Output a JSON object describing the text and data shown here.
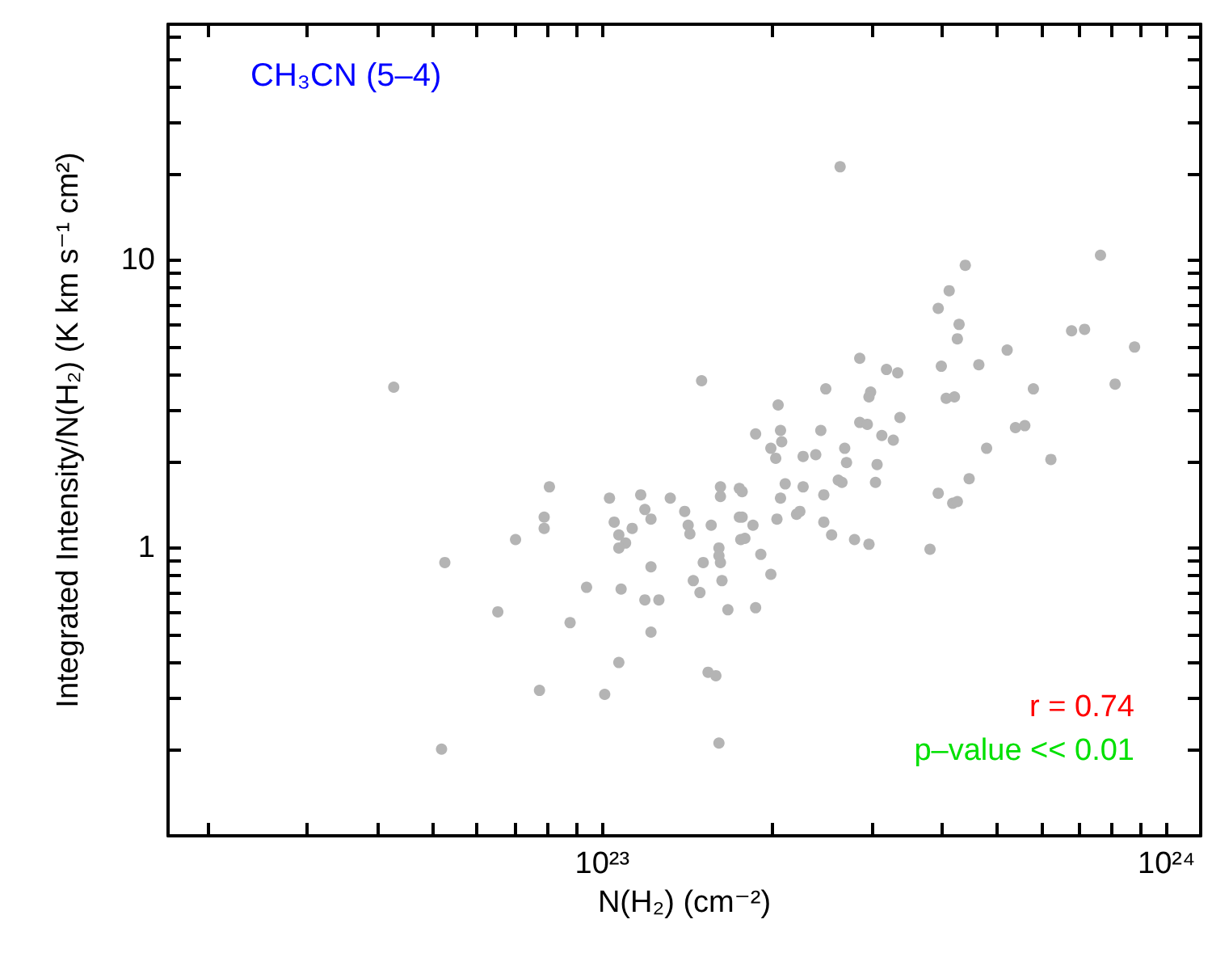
{
  "chart_data": {
    "type": "scatter",
    "title": "CH₃CN (5–4)",
    "xlabel": "N(H₂) (cm⁻²)",
    "ylabel": "Integrated Intensity/N(H₂) (K km s⁻¹ cm²)",
    "annotations": [
      "r = 0.74",
      "p–value << 0.01"
    ],
    "log": "xy",
    "marker": "circle",
    "grid": false,
    "xlim": [
      1.7e+22,
      1.15e+24
    ],
    "ylim": [
      0.1,
      66
    ],
    "xticks": [
      {
        "value": 2e+22,
        "label": null
      },
      {
        "value": 3e+22,
        "label": null
      },
      {
        "value": 4e+22,
        "label": null
      },
      {
        "value": 5e+22,
        "label": null
      },
      {
        "value": 6e+22,
        "label": null
      },
      {
        "value": 7e+22,
        "label": null
      },
      {
        "value": 8e+22,
        "label": null
      },
      {
        "value": 9e+22,
        "label": null
      },
      {
        "value": 1e+23,
        "label": "10²³"
      },
      {
        "value": 2e+23,
        "label": null
      },
      {
        "value": 3e+23,
        "label": null
      },
      {
        "value": 4e+23,
        "label": null
      },
      {
        "value": 5e+23,
        "label": null
      },
      {
        "value": 6e+23,
        "label": null
      },
      {
        "value": 7e+23,
        "label": null
      },
      {
        "value": 8e+23,
        "label": null
      },
      {
        "value": 9e+23,
        "label": null
      },
      {
        "value": 1e+24,
        "label": "10²⁴"
      }
    ],
    "yticks": [
      {
        "value": 0.2,
        "label": null
      },
      {
        "value": 0.3,
        "label": null
      },
      {
        "value": 0.4,
        "label": null
      },
      {
        "value": 0.5,
        "label": null
      },
      {
        "value": 0.6,
        "label": null
      },
      {
        "value": 0.7,
        "label": null
      },
      {
        "value": 0.8,
        "label": null
      },
      {
        "value": 0.9,
        "label": null
      },
      1,
      {
        "value": 2,
        "label": null
      },
      {
        "value": 3,
        "label": null
      },
      {
        "value": 4,
        "label": null
      },
      {
        "value": 5,
        "label": null
      },
      {
        "value": 6,
        "label": null
      },
      {
        "value": 7,
        "label": null
      },
      {
        "value": 8,
        "label": null
      },
      {
        "value": 9,
        "label": null
      },
      10,
      {
        "value": 20,
        "label": null
      },
      {
        "value": 30,
        "label": null
      },
      {
        "value": 40,
        "label": null
      },
      {
        "value": 50,
        "label": null
      },
      {
        "value": 60,
        "label": null
      }
    ],
    "series": [
      {
        "color": "#b4b4b4",
        "x": [
          4.27e+22,
          2.64e+23,
          7.64e+23,
          4.4e+23,
          4.12e+23,
          3.94e+23,
          4.29e+23,
          4.26e+23,
          6.79e+23,
          7.16e+23,
          8.78e+23,
          5.22e+23,
          4.65e+23,
          3.99e+23,
          2.86e+23,
          3.19e+23,
          3.34e+23,
          1.5e+23,
          2.49e+23,
          2.99e+23,
          2.97e+23,
          4.07e+23,
          4.21e+23,
          5.81e+23,
          8.11e+23,
          2.05e+23,
          2.86e+23,
          2.95e+23,
          3.37e+23,
          5.4e+23,
          5.61e+23,
          1.87e+23,
          2.07e+23,
          2.08e+23,
          2.44e+23,
          3.13e+23,
          3.28e+23,
          1.99e+23,
          2.03e+23,
          2.27e+23,
          2.39e+23,
          2.69e+23,
          2.71e+23,
          3.07e+23,
          4.8e+23,
          6.24e+23,
          4.47e+23,
          3.94e+23,
          4.18e+23,
          4.26e+23,
          3.81e+23,
          3.05e+23,
          2.62e+23,
          2.66e+23,
          2.47e+23,
          2.27e+23,
          2.11e+23,
          2.07e+23,
          1.62e+23,
          1.62e+23,
          1.75e+23,
          1.77e+23,
          1.4e+23,
          1.42e+23,
          1.43e+23,
          1.56e+23,
          1.75e+23,
          1.77e+23,
          1.85e+23,
          1.76e+23,
          1.79e+23,
          2.04e+23,
          2.21e+23,
          2.24e+23,
          2.47e+23,
          2.55e+23,
          2.8e+23,
          2.97e+23,
          1.61e+23,
          1.61e+23,
          1.62e+23,
          1.51e+23,
          1.45e+23,
          1.49e+23,
          1.63e+23,
          1.91e+23,
          1.99e+23,
          1.67e+23,
          1.87e+23,
          1.54e+23,
          1.59e+23,
          1.61e+23,
          8.06e+22,
          7.89e+22,
          7.89e+22,
          7.02e+22,
          5.26e+22,
          6.53e+22,
          8.77e+22,
          9.38e+22,
          7.74e+22,
          1.01e+23,
          5.19e+22,
          1.03e+23,
          1.17e+23,
          1.32e+23,
          1.05e+23,
          1.07e+23,
          1.1e+23,
          1.07e+23,
          1.13e+23,
          1.19e+23,
          1.22e+23,
          1.22e+23,
          1.08e+23,
          1.19e+23,
          1.26e+23,
          1.22e+23,
          1.07e+23
        ],
        "values": [
          3.62,
          21.1,
          10.4,
          9.6,
          7.83,
          6.8,
          5.98,
          5.33,
          5.68,
          5.75,
          4.99,
          4.87,
          4.33,
          4.28,
          4.56,
          4.17,
          4.06,
          3.81,
          3.57,
          3.48,
          3.35,
          3.31,
          3.35,
          3.57,
          3.71,
          3.14,
          2.73,
          2.69,
          2.84,
          2.62,
          2.66,
          2.49,
          2.56,
          2.34,
          2.56,
          2.46,
          2.37,
          2.22,
          2.05,
          2.08,
          2.11,
          2.22,
          1.98,
          1.95,
          2.22,
          2.03,
          1.74,
          1.55,
          1.43,
          1.45,
          0.99,
          1.69,
          1.72,
          1.69,
          1.53,
          1.63,
          1.67,
          1.49,
          1.63,
          1.51,
          1.61,
          1.57,
          1.34,
          1.2,
          1.12,
          1.2,
          1.28,
          1.28,
          1.2,
          1.07,
          1.08,
          1.26,
          1.31,
          1.34,
          1.23,
          1.11,
          1.07,
          1.03,
          1.0,
          0.94,
          0.89,
          0.89,
          0.77,
          0.7,
          0.77,
          0.95,
          0.81,
          0.61,
          0.62,
          0.37,
          0.36,
          0.21,
          1.63,
          1.28,
          1.17,
          1.07,
          0.89,
          0.6,
          0.55,
          0.73,
          0.32,
          0.31,
          0.2,
          1.49,
          1.53,
          1.49,
          1.23,
          1.11,
          1.04,
          1.0,
          1.17,
          1.36,
          1.26,
          0.86,
          0.72,
          0.66,
          0.66,
          0.51,
          0.4
        ]
      }
    ]
  }
}
